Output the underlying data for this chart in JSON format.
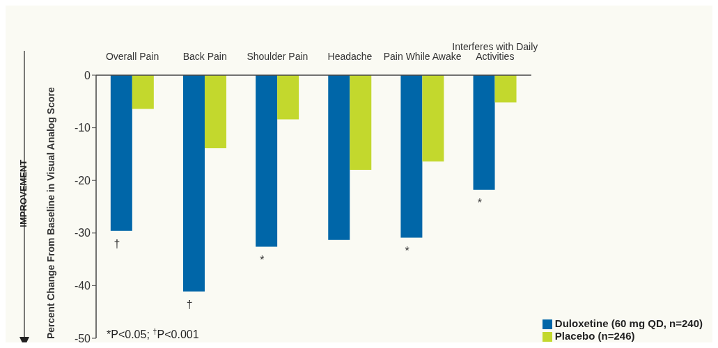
{
  "chart_data": {
    "type": "bar",
    "ylabel": "Percent Change From Baseline in Visual Analog Score",
    "categories": [
      "Overall Pain",
      "Back Pain",
      "Shoulder Pain",
      "Headache",
      "Pain While Awake",
      "Interferes with Daily Activities"
    ],
    "series": [
      {
        "name": "Duloxetine (60 mg QD, n=240)",
        "color": "#0066a8",
        "values": [
          -29.6,
          -41.1,
          -32.6,
          -31.3,
          -30.9,
          -21.8
        ]
      },
      {
        "name": "Placebo (n=246)",
        "color": "#c3d82d",
        "values": [
          -6.4,
          -13.9,
          -8.4,
          -18.0,
          -16.4,
          -5.2
        ]
      }
    ],
    "ylim": [
      -50,
      0
    ],
    "yticks": [
      0,
      -10,
      -20,
      -30,
      -40,
      -50
    ],
    "grid": false,
    "legend": "bottom right",
    "annotations": [
      "IMPROVEMENT",
      "*P<0.05; $^{†}$P<0.001",
      {
        "text": "†",
        "x": "Overall Pain",
        "y": -29.6
      },
      {
        "text": "†",
        "x": "Back Pain",
        "y": -41.1
      },
      {
        "text": "*",
        "x": "Shoulder Pain",
        "y": -32.6
      },
      {
        "text": "*",
        "x": "Pain While Awake",
        "y": -30.9
      },
      {
        "text": "*",
        "x": "Interferes with Daily Activities",
        "y": -21.8
      }
    ]
  }
}
